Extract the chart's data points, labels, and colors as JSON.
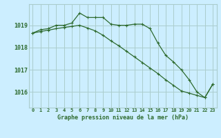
{
  "line1": [
    1018.65,
    1018.8,
    1018.85,
    1019.0,
    1019.0,
    1019.1,
    1019.55,
    1019.35,
    1019.35,
    1019.35,
    1019.05,
    1019.0,
    1019.0,
    1019.05,
    1019.05,
    1018.85,
    1018.2,
    1017.65,
    1017.35,
    1017.0,
    1016.55,
    1016.0,
    1015.75,
    1016.35
  ],
  "line2": [
    1018.65,
    1018.72,
    1018.78,
    1018.85,
    1018.9,
    1018.95,
    1019.0,
    1018.88,
    1018.75,
    1018.55,
    1018.3,
    1018.08,
    1017.83,
    1017.58,
    1017.33,
    1017.08,
    1016.83,
    1016.55,
    1016.3,
    1016.05,
    1015.95,
    1015.85,
    1015.75,
    1016.35
  ],
  "x": [
    0,
    1,
    2,
    3,
    4,
    5,
    6,
    7,
    8,
    9,
    10,
    11,
    12,
    13,
    14,
    15,
    16,
    17,
    18,
    19,
    20,
    21,
    22,
    23
  ],
  "line_color": "#2d6a2d",
  "bg_color": "#cceeff",
  "grid_color": "#aacccc",
  "xlabel": "Graphe pression niveau de la mer (hPa)",
  "ylim_min": 1015.3,
  "ylim_max": 1019.95,
  "yticks": [
    1016,
    1017,
    1018,
    1019
  ],
  "xtick_labels": [
    "0",
    "1",
    "2",
    "3",
    "4",
    "5",
    "6",
    "7",
    "8",
    "9",
    "10",
    "11",
    "12",
    "13",
    "14",
    "15",
    "16",
    "17",
    "18",
    "19",
    "20",
    "21",
    "22",
    "23"
  ]
}
